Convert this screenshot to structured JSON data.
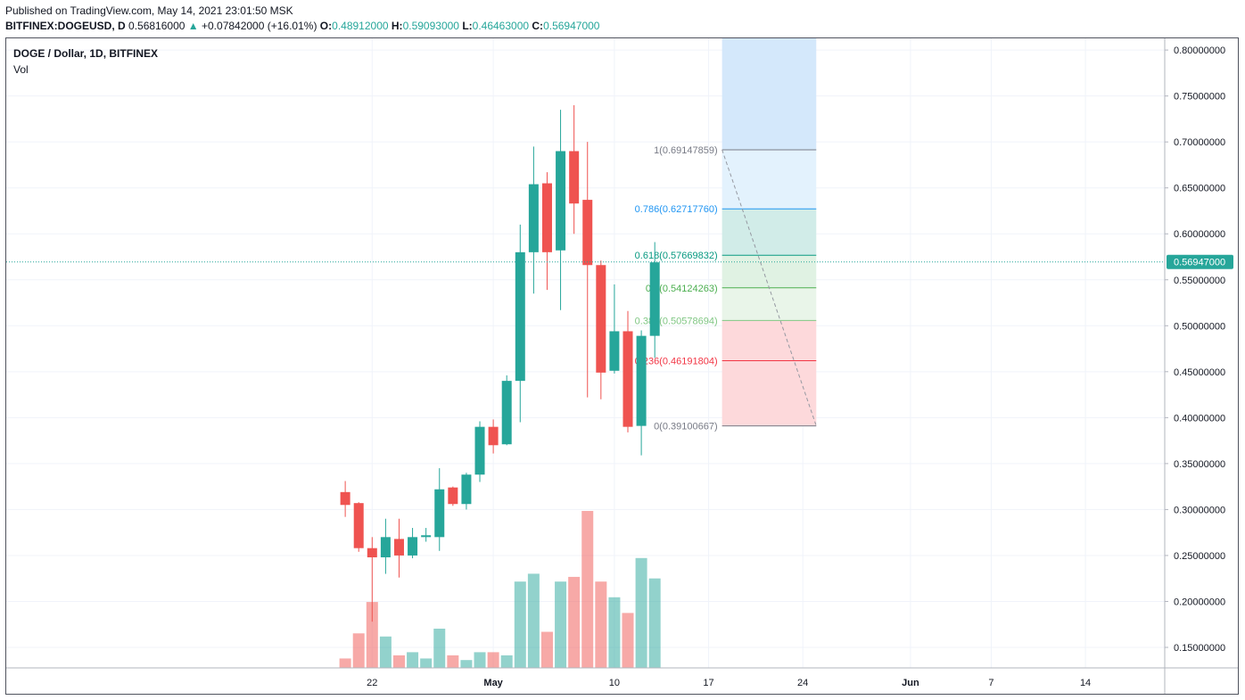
{
  "header": {
    "published": "Published on TradingView.com, May 14, 2021 23:01:50 MSK",
    "symbol": "BITFINEX:DOGEUSD, D",
    "last": "0.56816000",
    "change": "+0.07842000 (+16.01%)",
    "o_label": "O:",
    "o_value": "0.48912000",
    "h_label": "H:",
    "h_value": "0.59093000",
    "l_label": "L:",
    "l_value": "0.46463000",
    "c_label": "C:",
    "c_value": "0.56947000",
    "change_icon": "triangle-up-icon"
  },
  "legend": {
    "title": "DOGE / Dollar, 1D, BITFINEX",
    "vol": "Vol"
  },
  "colors": {
    "up": "#26a69a",
    "down": "#ef5350",
    "vol_up": "#26a69a",
    "vol_down": "#ef5350",
    "price_line": "#26a69a"
  },
  "chart_data": {
    "type": "candlestick",
    "title": "DOGE / Dollar, 1D, BITFINEX",
    "y_axis": {
      "ticks": [
        "0.80000000",
        "0.75000000",
        "0.70000000",
        "0.65000000",
        "0.60000000",
        "0.55000000",
        "0.50000000",
        "0.45000000",
        "0.40000000",
        "0.35000000",
        "0.30000000",
        "0.25000000",
        "0.20000000",
        "0.15000000"
      ],
      "ylim": [
        0.125,
        0.815
      ],
      "scale": "linear"
    },
    "x_axis": {
      "ticks": [
        "22",
        "May",
        "10",
        "17",
        "24",
        "Jun",
        "7",
        "14"
      ],
      "tick_dates": [
        "2021-04-22",
        "2021-05-01",
        "2021-05-10",
        "2021-05-17",
        "2021-05-24",
        "2021-06-01",
        "2021-06-07",
        "2021-06-14"
      ]
    },
    "current_price_label": "0.56947000",
    "candles": [
      {
        "date": "2021-04-20",
        "o": 0.319,
        "h": 0.331,
        "l": 0.292,
        "c": 0.305
      },
      {
        "date": "2021-04-21",
        "o": 0.307,
        "h": 0.308,
        "l": 0.254,
        "c": 0.258
      },
      {
        "date": "2021-04-22",
        "o": 0.258,
        "h": 0.27,
        "l": 0.178,
        "c": 0.248
      },
      {
        "date": "2021-04-23",
        "o": 0.248,
        "h": 0.29,
        "l": 0.23,
        "c": 0.27
      },
      {
        "date": "2021-04-24",
        "o": 0.268,
        "h": 0.29,
        "l": 0.226,
        "c": 0.25
      },
      {
        "date": "2021-04-25",
        "o": 0.25,
        "h": 0.28,
        "l": 0.247,
        "c": 0.27
      },
      {
        "date": "2021-04-26",
        "o": 0.27,
        "h": 0.28,
        "l": 0.265,
        "c": 0.272
      },
      {
        "date": "2021-04-27",
        "o": 0.27,
        "h": 0.345,
        "l": 0.255,
        "c": 0.322
      },
      {
        "date": "2021-04-28",
        "o": 0.324,
        "h": 0.325,
        "l": 0.304,
        "c": 0.306
      },
      {
        "date": "2021-04-29",
        "o": 0.306,
        "h": 0.34,
        "l": 0.3,
        "c": 0.338
      },
      {
        "date": "2021-04-30",
        "o": 0.338,
        "h": 0.396,
        "l": 0.33,
        "c": 0.39
      },
      {
        "date": "2021-05-01",
        "o": 0.39,
        "h": 0.398,
        "l": 0.361,
        "c": 0.37
      },
      {
        "date": "2021-05-02",
        "o": 0.371,
        "h": 0.446,
        "l": 0.37,
        "c": 0.44
      },
      {
        "date": "2021-05-03",
        "o": 0.44,
        "h": 0.61,
        "l": 0.395,
        "c": 0.58
      },
      {
        "date": "2021-05-04",
        "o": 0.58,
        "h": 0.695,
        "l": 0.535,
        "c": 0.654
      },
      {
        "date": "2021-05-05",
        "o": 0.655,
        "h": 0.667,
        "l": 0.539,
        "c": 0.58
      },
      {
        "date": "2021-05-06",
        "o": 0.582,
        "h": 0.735,
        "l": 0.517,
        "c": 0.69
      },
      {
        "date": "2021-05-07",
        "o": 0.69,
        "h": 0.74,
        "l": 0.6,
        "c": 0.633
      },
      {
        "date": "2021-05-08",
        "o": 0.637,
        "h": 0.7,
        "l": 0.422,
        "c": 0.566
      },
      {
        "date": "2021-05-09",
        "o": 0.566,
        "h": 0.571,
        "l": 0.42,
        "c": 0.449
      },
      {
        "date": "2021-05-10",
        "o": 0.451,
        "h": 0.545,
        "l": 0.448,
        "c": 0.494
      },
      {
        "date": "2021-05-11",
        "o": 0.494,
        "h": 0.516,
        "l": 0.384,
        "c": 0.39
      },
      {
        "date": "2021-05-12",
        "o": 0.391,
        "h": 0.495,
        "l": 0.359,
        "c": 0.489
      },
      {
        "date": "2021-05-13",
        "o": 0.489,
        "h": 0.591,
        "l": 0.465,
        "c": 0.569
      }
    ],
    "volume": {
      "series_label": "Vol",
      "values": [
        0.06,
        0.22,
        0.42,
        0.2,
        0.08,
        0.1,
        0.06,
        0.25,
        0.08,
        0.05,
        0.1,
        0.1,
        0.08,
        0.55,
        0.6,
        0.23,
        0.55,
        0.58,
        1.0,
        0.55,
        0.45,
        0.35,
        0.7,
        0.57
      ]
    },
    "fibonacci": {
      "start_date": "2021-05-18",
      "end_date": "2021-05-25",
      "levels": [
        {
          "ratio": "1",
          "price": 0.69147859,
          "label": "1(0.69147859)",
          "color": "#787b86",
          "fill": "#e0e0e0"
        },
        {
          "ratio": "0.786",
          "price": 0.6271776,
          "label": "0.786(0.62717760)",
          "color": "#2196f3",
          "fill": "#e3f2fd"
        },
        {
          "ratio": "0.618",
          "price": 0.57669832,
          "label": "0.618(0.57669832)",
          "color": "#089981",
          "fill": "#d1ece8"
        },
        {
          "ratio": "0.5",
          "price": 0.54124263,
          "label": "0.5(0.54124263)",
          "color": "#4caf50",
          "fill": "#e0f2e3"
        },
        {
          "ratio": "0.382",
          "price": 0.50578694,
          "label": "0.382(0.50578694)",
          "color": "#81c784",
          "fill": "#e9f5e9"
        },
        {
          "ratio": "0.236",
          "price": 0.46191804,
          "label": "0.236(0.46191804)",
          "color": "#f23645",
          "fill": "#fdd9db"
        },
        {
          "ratio": "0",
          "price": 0.39100667,
          "label": "0(0.39100667)",
          "color": "#787b86",
          "fill": ""
        }
      ],
      "extension_fill": "#d4e8fb"
    }
  }
}
